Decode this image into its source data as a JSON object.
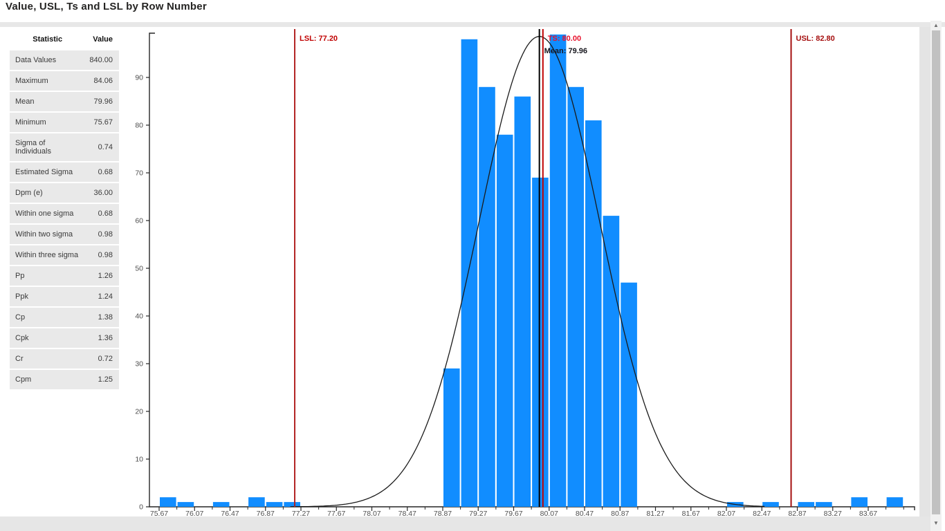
{
  "title": "Value, USL, Ts and LSL by Row Number",
  "stats_table": {
    "headers": [
      "Statistic",
      "Value"
    ],
    "rows": [
      [
        "Data Values",
        "840.00"
      ],
      [
        "Maximum",
        "84.06"
      ],
      [
        "Mean",
        "79.96"
      ],
      [
        "Minimum",
        "75.67"
      ],
      [
        "Sigma of Individuals",
        "0.74"
      ],
      [
        "Estimated Sigma",
        "0.68"
      ],
      [
        "Dpm (e)",
        "36.00"
      ],
      [
        "Within one sigma",
        "0.68"
      ],
      [
        "Within two sigma",
        "0.98"
      ],
      [
        "Within three sigma",
        "0.98"
      ],
      [
        "Pp",
        "1.26"
      ],
      [
        "Ppk",
        "1.24"
      ],
      [
        "Cp",
        "1.38"
      ],
      [
        "Cpk",
        "1.36"
      ],
      [
        "Cr",
        "0.72"
      ],
      [
        "Cpm",
        "1.25"
      ]
    ]
  },
  "chart_data": {
    "type": "bar",
    "subtype": "histogram",
    "title": "Value, USL, Ts and LSL by Row Number",
    "xlabel": "",
    "ylabel": "",
    "histogram": {
      "bin_start": 75.67,
      "bin_width": 0.2,
      "counts": [
        2,
        1,
        0,
        1,
        0,
        2,
        1,
        1,
        0,
        0,
        0,
        0,
        0,
        0,
        0,
        0,
        29,
        98,
        88,
        78,
        86,
        69,
        99,
        88,
        81,
        61,
        47,
        0,
        0,
        0,
        0,
        0,
        1,
        0,
        1,
        0,
        1,
        1,
        0,
        2,
        0,
        2
      ],
      "total": 840
    },
    "x_tick_labels": [
      "75.67",
      "76.07",
      "76.47",
      "76.87",
      "77.27",
      "77.67",
      "78.07",
      "78.47",
      "78.87",
      "79.27",
      "79.67",
      "80.07",
      "80.47",
      "80.87",
      "81.27",
      "81.67",
      "82.07",
      "82.47",
      "82.87",
      "83.27",
      "83.67"
    ],
    "y_ticks": [
      0,
      10,
      20,
      30,
      40,
      50,
      60,
      70,
      80,
      90
    ],
    "y_max": 99.3,
    "grid": false,
    "normal_curve": {
      "mean": 79.96,
      "sigma": 0.68,
      "peak": 98.6,
      "x_range": [
        77.15,
        82.5
      ]
    },
    "ref_lines": [
      {
        "id": "lsl",
        "label": "LSL: 77.20",
        "value": 77.2,
        "line_color": "#B22222",
        "text_color": "#C00000"
      },
      {
        "id": "ts",
        "label": "TS: 80.00",
        "value": 80.0,
        "line_color": "#C00000",
        "text_color": "#E8112C"
      },
      {
        "id": "mean",
        "label": "Mean: 79.96",
        "value": 79.96,
        "line_color": "#000000",
        "text_color": "#16161D"
      },
      {
        "id": "usl",
        "label": "USL: 82.80",
        "value": 82.8,
        "line_color": "#A50F0F",
        "text_color": "#A50F0F"
      }
    ],
    "colors": {
      "bar": "#118DFF",
      "curve": "#1A1A1A",
      "axis": "#252525",
      "tick_text": "#4E4E4E"
    }
  },
  "scrollbar": {
    "up_icon": "▲",
    "down_icon": "▼"
  }
}
